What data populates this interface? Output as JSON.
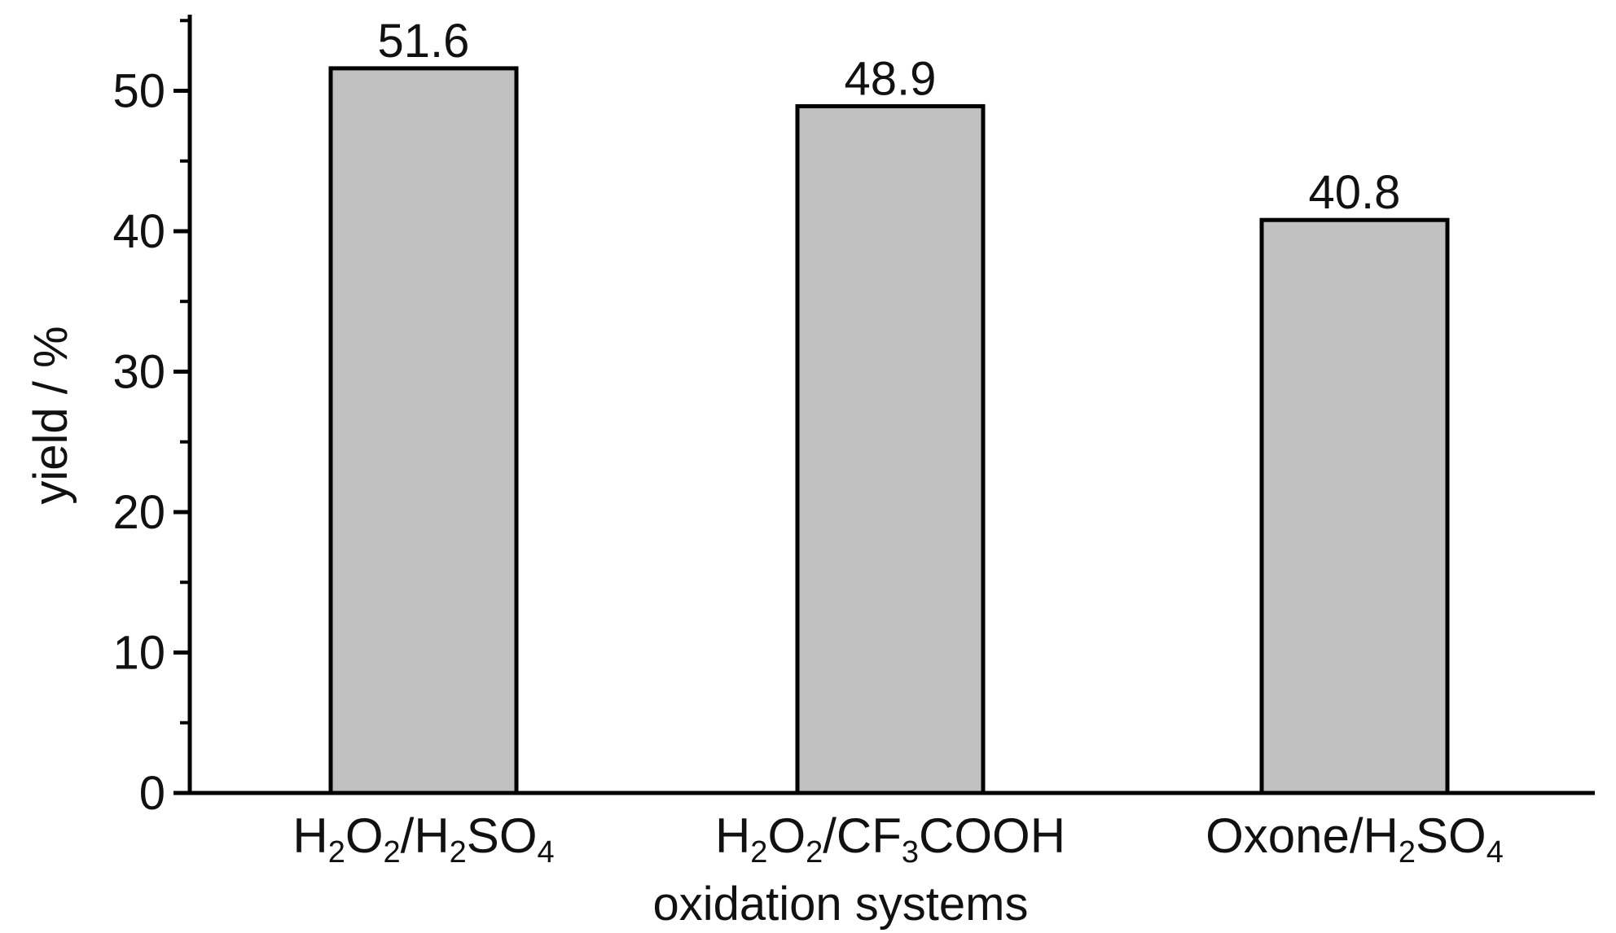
{
  "chart_data": {
    "type": "bar",
    "categories": [
      [
        {
          "t": "H"
        },
        {
          "t": "2",
          "sub": true
        },
        {
          "t": "O"
        },
        {
          "t": "2",
          "sub": true
        },
        {
          "t": "/H"
        },
        {
          "t": "2",
          "sub": true
        },
        {
          "t": "SO"
        },
        {
          "t": "4",
          "sub": true
        }
      ],
      [
        {
          "t": "H"
        },
        {
          "t": "2",
          "sub": true
        },
        {
          "t": "O"
        },
        {
          "t": "2",
          "sub": true
        },
        {
          "t": "/CF"
        },
        {
          "t": "3",
          "sub": true
        },
        {
          "t": "COOH"
        }
      ],
      [
        {
          "t": "Oxone/H"
        },
        {
          "t": "2",
          "sub": true
        },
        {
          "t": "SO"
        },
        {
          "t": "4",
          "sub": true
        }
      ]
    ],
    "values": [
      51.6,
      48.9,
      40.8
    ],
    "value_labels": [
      "51.6",
      "48.9",
      "40.8"
    ],
    "xlabel": "oxidation systems",
    "ylabel": "yield / %",
    "ylim": [
      0,
      55
    ],
    "yticks": [
      0,
      10,
      20,
      30,
      40,
      50
    ],
    "grid": false,
    "colors": {
      "bar_fill": "#c0c0c0",
      "bar_stroke": "#000000",
      "axis": "#000000"
    }
  }
}
